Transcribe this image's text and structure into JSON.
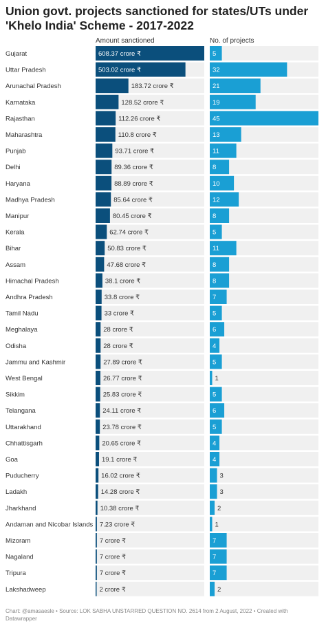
{
  "chart_data": {
    "type": "bar",
    "title": "Union govt. projects sanctioned for states/UTs under 'Khelo India' Scheme - 2017-2022",
    "footer": "Chart: @amasaesle • Source: LOK SABHA UNSTARRED QUESTION NO. 2614 from 2 August, 2022 • Created with Datawrapper",
    "value_suffix": " crore ₹",
    "colors": {
      "amount": "#0b4f7c",
      "projects": "#1a9fd4",
      "track": "#f0f0f0"
    },
    "categories": [
      "Gujarat",
      "Uttar Pradesh",
      "Arunachal Pradesh",
      "Karnataka",
      "Rajasthan",
      "Maharashtra",
      "Punjab",
      "Delhi",
      "Haryana",
      "Madhya Pradesh",
      "Manipur",
      "Kerala",
      "Bihar",
      "Assam",
      "Himachal Pradesh",
      "Andhra Pradesh",
      "Tamil Nadu",
      "Meghalaya",
      "Odisha",
      "Jammu and Kashmir",
      "West Bengal",
      "Sikkim",
      "Telangana",
      "Uttarakhand",
      "Chhattisgarh",
      "Goa",
      "Puducherry",
      "Ladakh",
      "Jharkhand",
      "Andaman and Nicobar Islands",
      "Mizoram",
      "Nagaland",
      "Tripura",
      "Lakshadweep"
    ],
    "series": [
      {
        "name": "Amount sanctioned",
        "values": [
          608.37,
          503.02,
          183.72,
          128.52,
          112.26,
          110.8,
          93.71,
          89.36,
          88.89,
          85.64,
          80.45,
          62.74,
          50.83,
          47.68,
          38.1,
          33.8,
          33,
          28,
          28,
          27.89,
          26.77,
          25.83,
          24.11,
          23.78,
          20.65,
          19.1,
          16.02,
          14.28,
          10.38,
          7.23,
          7,
          7,
          7,
          2
        ]
      },
      {
        "name": "No. of projects",
        "values": [
          5,
          32,
          21,
          19,
          45,
          13,
          11,
          8,
          10,
          12,
          8,
          5,
          11,
          8,
          8,
          7,
          5,
          6,
          4,
          5,
          1,
          5,
          6,
          5,
          4,
          4,
          3,
          3,
          2,
          1,
          7,
          7,
          7,
          2
        ]
      }
    ]
  }
}
